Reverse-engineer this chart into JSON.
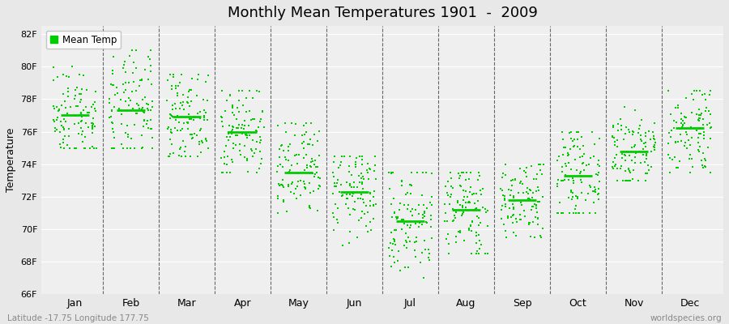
{
  "title": "Monthly Mean Temperatures 1901  -  2009",
  "ylabel": "Temperature",
  "xlabel_coords": "Latitude -17.75 Longitude 177.75",
  "watermark": "worldspecies.org",
  "ylim": [
    66,
    82.5
  ],
  "yticks": [
    66,
    68,
    70,
    72,
    74,
    76,
    78,
    80,
    82
  ],
  "ytick_labels": [
    "66F",
    "68F",
    "70F",
    "72F",
    "74F",
    "76F",
    "78F",
    "80F",
    "82F"
  ],
  "months": [
    "Jan",
    "Feb",
    "Mar",
    "Apr",
    "May",
    "Jun",
    "Jul",
    "Aug",
    "Sep",
    "Oct",
    "Nov",
    "Dec"
  ],
  "month_means": [
    77.0,
    77.3,
    76.9,
    76.0,
    73.5,
    72.3,
    70.5,
    71.2,
    71.8,
    73.3,
    74.8,
    76.2
  ],
  "dot_color": "#00cc00",
  "bg_color": "#e8e8e8",
  "plot_bg_color": "#efefef",
  "grid_color": "#ffffff",
  "legend_label": "Mean Temp",
  "n_years": 109,
  "seed": 42,
  "monthly_spread": [
    1.6,
    1.8,
    1.4,
    1.5,
    1.6,
    1.5,
    1.8,
    1.6,
    1.4,
    1.5,
    1.4,
    1.5
  ],
  "monthly_range": [
    [
      75.0,
      81.5
    ],
    [
      75.0,
      81.0
    ],
    [
      74.5,
      79.5
    ],
    [
      73.5,
      78.5
    ],
    [
      71.0,
      76.5
    ],
    [
      69.0,
      74.5
    ],
    [
      67.0,
      73.5
    ],
    [
      68.5,
      73.5
    ],
    [
      69.5,
      74.0
    ],
    [
      71.0,
      76.0
    ],
    [
      73.0,
      77.5
    ],
    [
      73.5,
      78.5
    ]
  ]
}
